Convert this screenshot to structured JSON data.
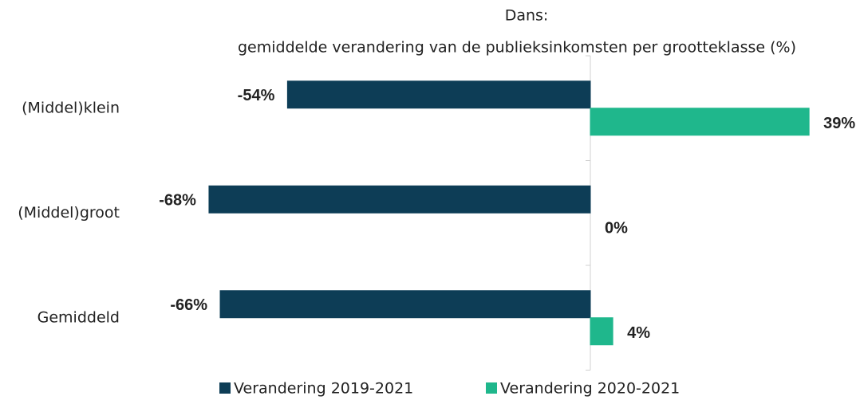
{
  "chart_data": {
    "type": "bar",
    "orientation": "horizontal",
    "title": "Dans:",
    "subtitle": "gemiddelde verandering van de publieksinkomsten per grootteklasse (%)",
    "categories": [
      "(Middel)klein",
      "(Middel)groot",
      "Gemiddeld"
    ],
    "series": [
      {
        "name": "Verandering 2019-2021",
        "color": "#0d3d56",
        "values": [
          -54,
          -68,
          -66
        ],
        "value_labels": [
          "-54%",
          "-68%",
          "-66%"
        ]
      },
      {
        "name": "Verandering 2020-2021",
        "color": "#1fb78c",
        "values": [
          39,
          0,
          4
        ],
        "value_labels": [
          "39%",
          "0%",
          "4%"
        ]
      }
    ]
  }
}
